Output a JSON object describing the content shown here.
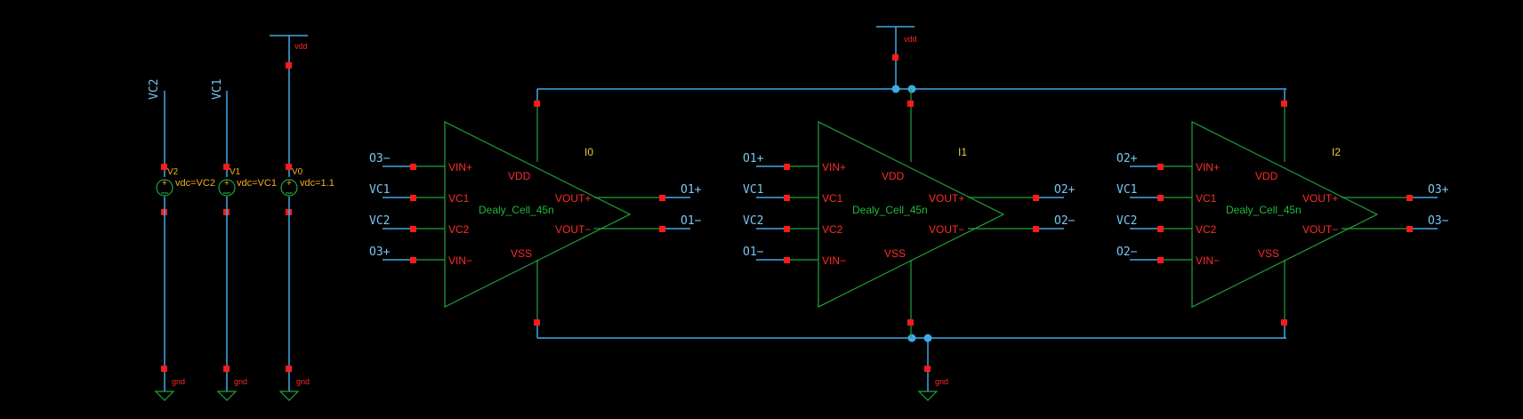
{
  "colors": {
    "wire": "#3fa9e6",
    "symbol": "#1fa33c",
    "pin": "#ff1a1a",
    "net_label": "#79c6f2",
    "pin_name": "#ff2a2a",
    "instance": "#e8d13a",
    "source_param": "#f2b020",
    "background": "#000000"
  },
  "supply": {
    "vdd": "vdd",
    "gnd": "gnd"
  },
  "sources": [
    {
      "name": "V2",
      "net": "VC2",
      "param": "vdc=VC2",
      "gnd": "gnd"
    },
    {
      "name": "V1",
      "net": "VC1",
      "param": "vdc=VC1",
      "gnd": "gnd"
    },
    {
      "name": "V0",
      "net": "vdd",
      "param": "vdc=1.1",
      "gnd": "gnd"
    }
  ],
  "cells": [
    {
      "instance": "I0",
      "cell": "Dealy_Cell_45n",
      "pins": {
        "vinp": "VIN+",
        "vc1": "VC1",
        "vc2": "VC2",
        "vinm": "VIN−",
        "vdd": "VDD",
        "vss": "VSS",
        "voutp": "VOUT+",
        "voutm": "VOUT−"
      },
      "nets": {
        "vinp": "O3−",
        "vc1": "VC1",
        "vc2": "VC2",
        "vinm": "O3+",
        "voutp": "O1+",
        "voutm": "O1−"
      }
    },
    {
      "instance": "I1",
      "cell": "Dealy_Cell_45n",
      "pins": {
        "vinp": "VIN+",
        "vc1": "VC1",
        "vc2": "VC2",
        "vinm": "VIN−",
        "vdd": "VDD",
        "vss": "VSS",
        "voutp": "VOUT+",
        "voutm": "VOUT−"
      },
      "nets": {
        "vinp": "O1+",
        "vc1": "VC1",
        "vc2": "VC2",
        "vinm": "O1−",
        "voutp": "O2+",
        "voutm": "O2−"
      }
    },
    {
      "instance": "I2",
      "cell": "Dealy_Cell_45n",
      "pins": {
        "vinp": "VIN+",
        "vc1": "VC1",
        "vc2": "VC2",
        "vinm": "VIN−",
        "vdd": "VDD",
        "vss": "VSS",
        "voutp": "VOUT+",
        "voutm": "VOUT−"
      },
      "nets": {
        "vinp": "O2+",
        "vc1": "VC1",
        "vc2": "VC2",
        "vinm": "O2−",
        "voutp": "O3+",
        "voutm": "O3−"
      }
    }
  ]
}
